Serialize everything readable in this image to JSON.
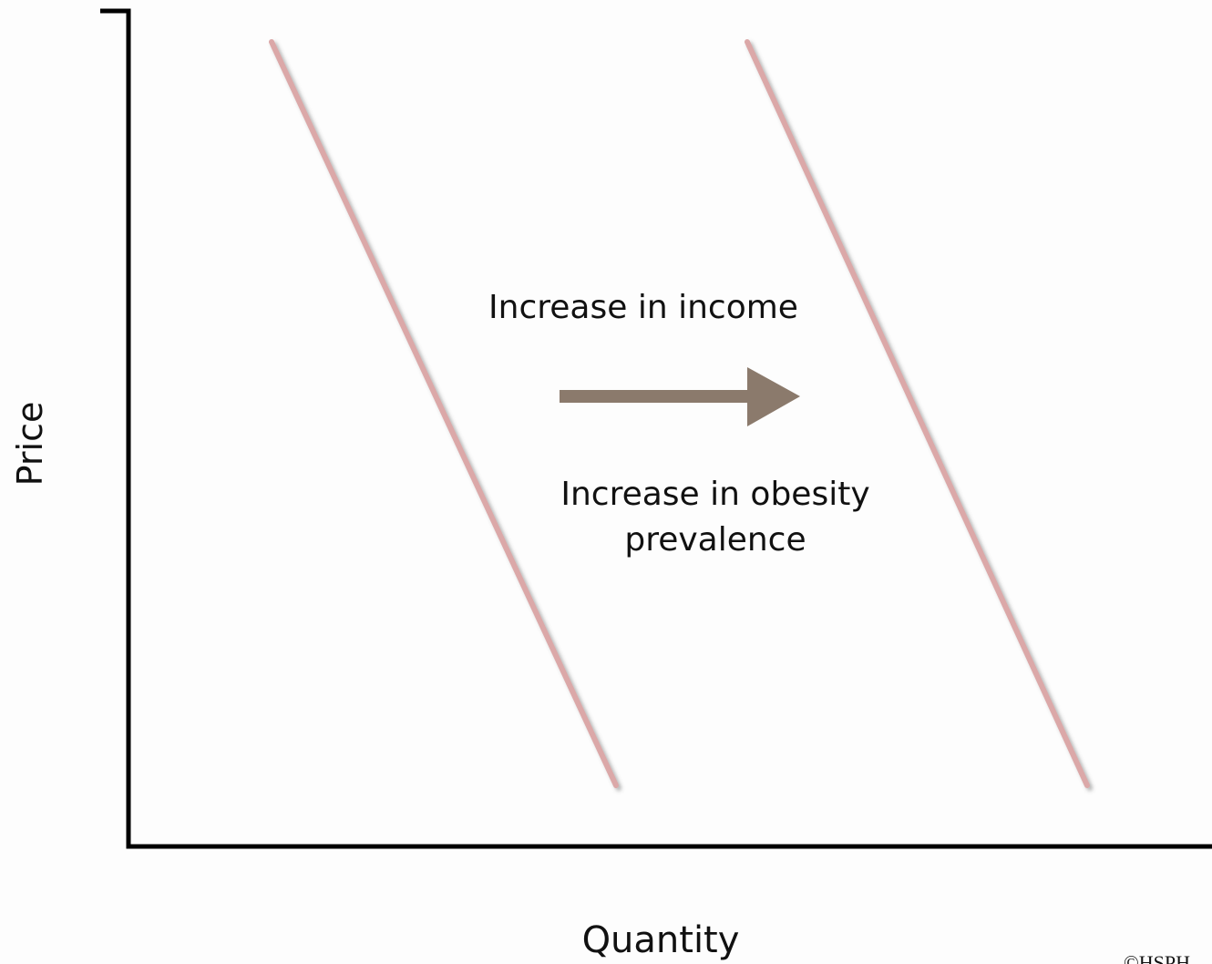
{
  "axes": {
    "y_label": "Price",
    "x_label": "Quantity"
  },
  "annotations": {
    "shift_cause": "Increase in income",
    "effect_lines": [
      "Increase in obesity",
      "prevalence"
    ]
  },
  "watermark": "©HSPH"
}
